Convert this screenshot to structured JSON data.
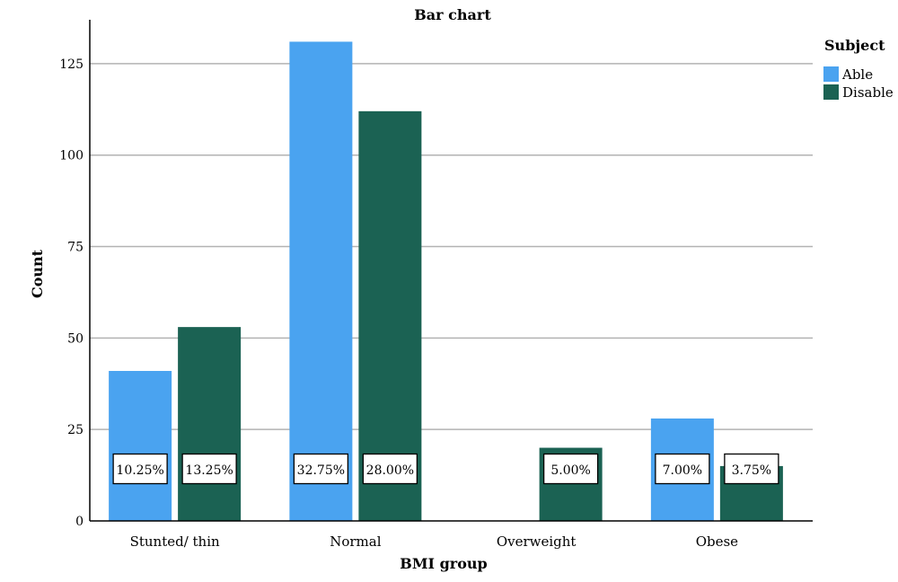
{
  "chart_data": {
    "type": "bar",
    "title": "Bar chart",
    "xlabel": "BMI group",
    "ylabel": "Count",
    "categories": [
      "Stunted/ thin",
      "Normal",
      "Overweight",
      "Obese"
    ],
    "ylim": [
      0,
      137
    ],
    "yticks": [
      0,
      25,
      50,
      75,
      100,
      125
    ],
    "grid": true,
    "legend_title": "Subject",
    "legend_position": "top-right",
    "series": [
      {
        "name": "Able",
        "color": "#4aa3f0",
        "values": [
          41,
          131,
          0,
          28
        ],
        "labels": [
          "10.25%",
          "32.75%",
          "",
          "7.00%"
        ]
      },
      {
        "name": "Disable",
        "color": "#1b6253",
        "values": [
          53,
          112,
          20,
          15
        ],
        "labels": [
          "13.25%",
          "28.00%",
          "5.00%",
          "3.75%"
        ]
      }
    ]
  }
}
